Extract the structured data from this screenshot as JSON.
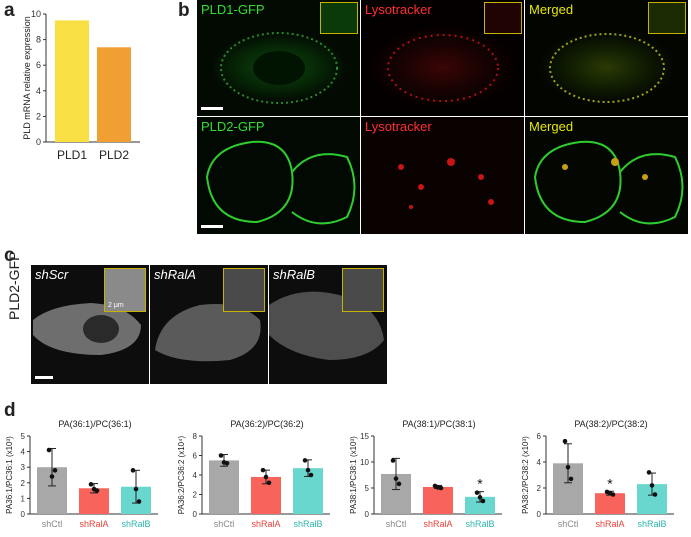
{
  "panel_letters": {
    "a": "a",
    "b": "b",
    "c": "c",
    "d": "d"
  },
  "panel_b": {
    "row1": [
      "PLD1-GFP",
      "Lysotracker",
      "Merged"
    ],
    "row2": [
      "PLD2-GFP",
      "Lysotracker",
      "Merged"
    ]
  },
  "panel_c": {
    "side_label": "PLD2-GFP",
    "conditions": [
      "shScr",
      "shRalA",
      "shRalB"
    ],
    "inset_scale": "2 μm"
  },
  "colors": {
    "pld1": "#f8df44",
    "pld2": "#f0a033",
    "shCtl": "#a8a8a8",
    "shRalA": "#f8645c",
    "shRalB": "#6ad7cf",
    "label_shRalA": "#e8413a",
    "label_shRalB": "#2bb7ad"
  },
  "chart_data": [
    {
      "type": "bar",
      "categories": [
        "PLD1",
        "PLD2"
      ],
      "values": [
        9.5,
        7.4
      ],
      "ylabel": "PLD mRNA relative expression",
      "ylim": [
        0,
        10
      ],
      "yticks": [
        0,
        2,
        4,
        6,
        8,
        10
      ]
    },
    {
      "type": "bar",
      "title": "PA(36:1)/PC(36:1)",
      "ylabel": "PA36:1/PC36:1 (x10³)",
      "categories": [
        "shCtl",
        "shRalA",
        "shRalB"
      ],
      "values": [
        3.0,
        1.65,
        1.75
      ],
      "error": [
        1.2,
        0.3,
        1.05
      ],
      "points": [
        [
          4.1,
          2.4,
          2.8
        ],
        [
          1.9,
          1.6,
          1.5
        ],
        [
          2.8,
          1.6,
          0.8
        ]
      ],
      "ylim": [
        0,
        5
      ],
      "yticks": [
        0,
        1,
        2,
        3,
        4,
        5
      ],
      "significance": [
        "",
        "",
        ""
      ]
    },
    {
      "type": "bar",
      "title": "PA(36:2)/PC(36:2)",
      "ylabel": "PA36:2/PC36:2 (x10⁴)",
      "categories": [
        "shCtl",
        "shRalA",
        "shRalB"
      ],
      "values": [
        5.5,
        3.8,
        4.7
      ],
      "error": [
        0.6,
        0.7,
        0.85
      ],
      "points": [
        [
          6.0,
          5.3,
          5.2
        ],
        [
          4.5,
          3.8,
          3.2
        ],
        [
          5.5,
          4.5,
          4.0
        ]
      ],
      "ylim": [
        0,
        8
      ],
      "yticks": [
        0,
        2,
        4,
        6,
        8
      ],
      "significance": [
        "",
        "",
        ""
      ]
    },
    {
      "type": "bar",
      "title": "PA(38:1)/PC(38:1)",
      "ylabel": "PA38:1/PC38:1 (x10³)",
      "categories": [
        "shCtl",
        "shRalA",
        "shRalB"
      ],
      "values": [
        7.7,
        5.2,
        3.3
      ],
      "error": [
        3.0,
        0.3,
        1.0
      ],
      "points": [
        [
          10.3,
          6.8,
          5.8
        ],
        [
          5.4,
          5.1,
          5.0
        ],
        [
          4.1,
          3.2,
          2.5
        ]
      ],
      "ylim": [
        0,
        15
      ],
      "yticks": [
        0,
        5,
        10,
        15
      ],
      "significance": [
        "",
        "",
        "*"
      ]
    },
    {
      "type": "bar",
      "title": "PA(38:2)/PC(38:2)",
      "ylabel": "PA38:2/PC38:2 (x10³)",
      "categories": [
        "shCtl",
        "shRalA",
        "shRalB"
      ],
      "values": [
        3.9,
        1.6,
        2.3
      ],
      "error": [
        1.5,
        0.15,
        0.85
      ],
      "points": [
        [
          5.6,
          3.6,
          2.7
        ],
        [
          1.7,
          1.6,
          1.5
        ],
        [
          3.2,
          2.2,
          1.5
        ]
      ],
      "ylim": [
        0,
        6
      ],
      "yticks": [
        0,
        2,
        4,
        6
      ],
      "significance": [
        "",
        "*",
        ""
      ]
    }
  ]
}
